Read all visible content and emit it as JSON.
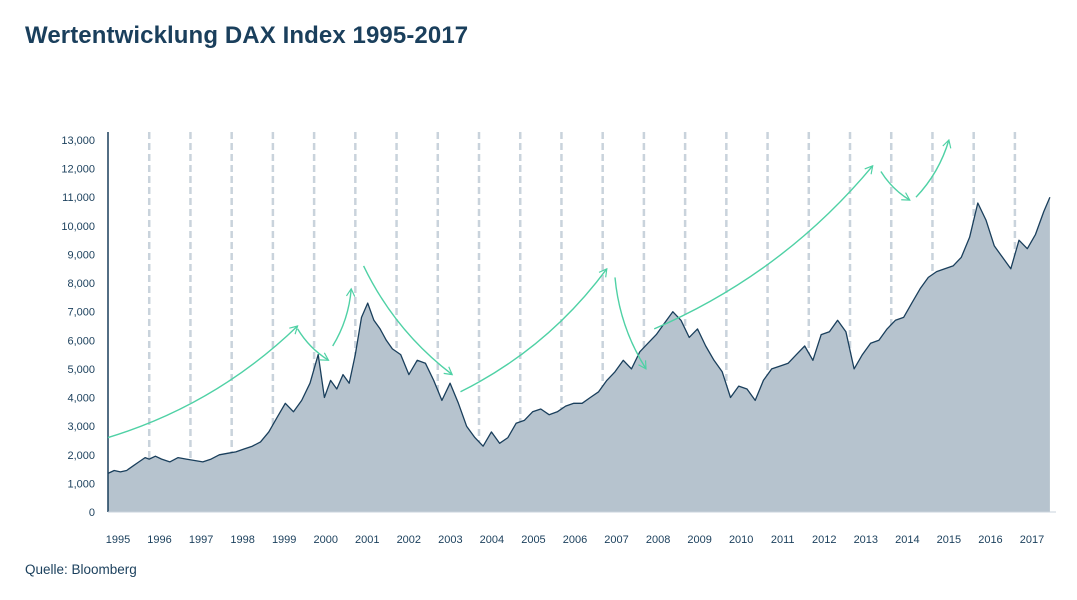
{
  "title": "Wertentwicklung DAX Index 1995-2017",
  "source": "Quelle: Bloomberg",
  "colors": {
    "area": "#b6c3ce",
    "line": "#1a3f5c",
    "arrow": "#4fd1a5",
    "grid": "#c9d3dc",
    "axis": "#1a3f5c"
  },
  "chart_data": {
    "type": "area",
    "title": "Wertentwicklung DAX Index 1995-2017",
    "xlabel": "",
    "ylabel": "",
    "ylim": [
      0,
      13000
    ],
    "yticks": [
      "0",
      "1,000",
      "2,000",
      "3,000",
      "4,000",
      "5,000",
      "6,000",
      "7,000",
      "8,000",
      "9,000",
      "10,000",
      "11,000",
      "12,000",
      "13,000"
    ],
    "xticks": [
      "1995",
      "1996",
      "1997",
      "1998",
      "1999",
      "2000",
      "2001",
      "2002",
      "2003",
      "2004",
      "2005",
      "2006",
      "2007",
      "2008",
      "2009",
      "2010",
      "2011",
      "2012",
      "2013",
      "2014",
      "2015",
      "2016",
      "2017"
    ],
    "xlim": [
      1995.0,
      2017.9
    ],
    "grid": "vertical dashed",
    "series": [
      {
        "x": [
          1995.0,
          1995.15,
          1995.3,
          1995.45,
          1995.6,
          1995.75,
          1995.9,
          1996.0,
          1996.15,
          1996.3,
          1996.5,
          1996.7,
          1996.9,
          1997.1,
          1997.3,
          1997.5,
          1997.7,
          1997.9,
          1998.1,
          1998.3,
          1998.5,
          1998.7,
          1998.9,
          1999.1,
          1999.3,
          1999.5,
          1999.7,
          1999.9,
          2000.1,
          2000.25,
          2000.4,
          2000.55,
          2000.7,
          2000.85,
          2001.0,
          2001.15,
          2001.3,
          2001.45,
          2001.6,
          2001.75,
          2001.9,
          2002.1,
          2002.3,
          2002.5,
          2002.7,
          2002.9,
          2003.1,
          2003.3,
          2003.5,
          2003.7,
          2003.9,
          2004.1,
          2004.3,
          2004.5,
          2004.7,
          2004.9,
          2005.1,
          2005.3,
          2005.5,
          2005.7,
          2005.9,
          2006.1,
          2006.3,
          2006.5,
          2006.7,
          2006.9,
          2007.1,
          2007.3,
          2007.5,
          2007.7,
          2007.9,
          2008.1,
          2008.3,
          2008.5,
          2008.7,
          2008.9,
          2009.1,
          2009.3,
          2009.5,
          2009.7,
          2009.9,
          2010.1,
          2010.3,
          2010.5,
          2010.7,
          2010.9,
          2011.1,
          2011.3,
          2011.5,
          2011.7,
          2011.9,
          2012.1,
          2012.3,
          2012.5,
          2012.7,
          2012.9,
          2013.1,
          2013.3,
          2013.5,
          2013.7,
          2013.9,
          2014.1,
          2014.3,
          2014.5,
          2014.7,
          2014.9,
          2015.1,
          2015.3,
          2015.5,
          2015.7,
          2015.9,
          2016.1,
          2016.3,
          2016.5,
          2016.7,
          2016.9,
          2017.1,
          2017.3,
          2017.5,
          2017.7,
          2017.85
        ],
        "values": [
          1350,
          1450,
          1400,
          1450,
          1600,
          1750,
          1900,
          1850,
          1950,
          1850,
          1750,
          1900,
          1850,
          1800,
          1750,
          1850,
          2000,
          2050,
          2100,
          2200,
          2300,
          2450,
          2800,
          3300,
          3800,
          3500,
          3900,
          4500,
          5500,
          4000,
          4600,
          4300,
          4800,
          4500,
          5500,
          6800,
          7300,
          6700,
          6400,
          6000,
          5700,
          5500,
          4800,
          5300,
          5200,
          4600,
          3900,
          4500,
          3800,
          3000,
          2600,
          2300,
          2800,
          2400,
          2600,
          3100,
          3200,
          3500,
          3600,
          3400,
          3500,
          3700,
          3800,
          3800,
          4000,
          4200,
          4600,
          4900,
          5300,
          5000,
          5600,
          5900,
          6200,
          6600,
          7000,
          6700,
          6100,
          6400,
          5800,
          5300,
          4900,
          4000,
          4400,
          4300,
          3900,
          4600,
          5000,
          5100,
          5200,
          5500,
          5800,
          5300,
          6200,
          6300,
          6700,
          6300,
          5000,
          5500,
          5900,
          6000,
          6400,
          6700,
          6800,
          7300,
          7800,
          8200,
          8400,
          8500,
          8600,
          8900,
          9600,
          10800,
          10200,
          9300,
          8900,
          8500,
          9500,
          9200,
          9700,
          10500,
          11000
        ]
      }
    ],
    "trend_arrows": [
      {
        "from": [
          1995.0,
          2600
        ],
        "to": [
          1999.6,
          6500
        ]
      },
      {
        "from": [
          1999.6,
          6400
        ],
        "to": [
          2000.35,
          5300
        ]
      },
      {
        "from": [
          2000.45,
          5800
        ],
        "to": [
          2000.9,
          7800
        ]
      },
      {
        "from": [
          2001.2,
          8600
        ],
        "to": [
          2003.35,
          4800
        ]
      },
      {
        "from": [
          2003.55,
          4200
        ],
        "to": [
          2007.1,
          8500
        ]
      },
      {
        "from": [
          2007.3,
          8200
        ],
        "to": [
          2008.05,
          5000
        ]
      },
      {
        "from": [
          2008.25,
          6400
        ],
        "to": [
          2013.55,
          12100
        ]
      },
      {
        "from": [
          2013.75,
          11900
        ],
        "to": [
          2014.45,
          10900
        ]
      },
      {
        "from": [
          2014.6,
          11000
        ],
        "to": [
          2015.4,
          13000
        ]
      }
    ]
  }
}
